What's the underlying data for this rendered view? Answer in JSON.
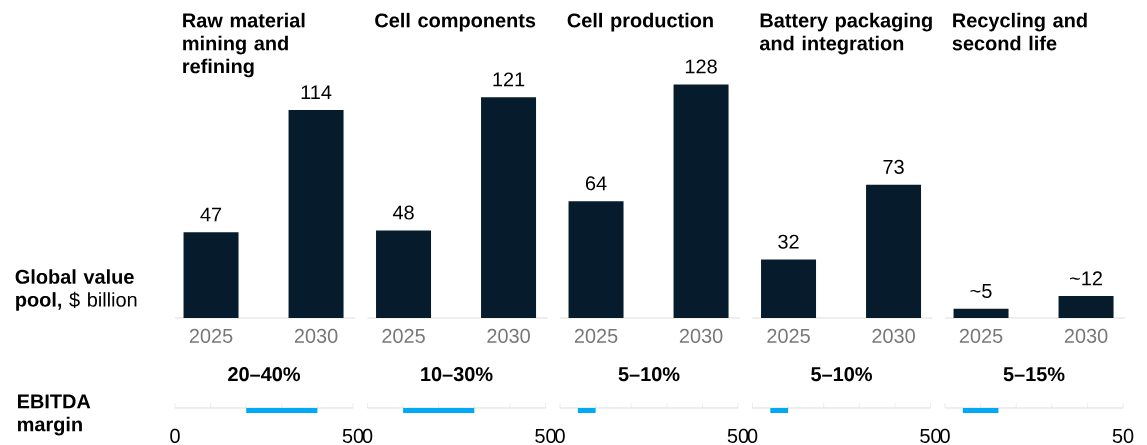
{
  "chart_data": [
    {
      "type": "bar",
      "title": "Raw material mining and refining",
      "ylabel": "**Global value pool,** $ billion",
      "categories": [
        "2025",
        "2030"
      ],
      "values": [
        47,
        114
      ],
      "color": "#061c2c",
      "data_labels": true
    },
    {
      "type": "bar",
      "title": "Cell components",
      "categories": [
        "2025",
        "2030"
      ],
      "values": [
        48,
        121
      ],
      "color": "#061c2c",
      "data_labels": true
    },
    {
      "type": "bar",
      "title": "Cell production",
      "categories": [
        "2025",
        "2030"
      ],
      "values": [
        64,
        128
      ],
      "color": "#061c2c",
      "data_labels": true
    },
    {
      "type": "bar",
      "title": "Battery packaging and integration",
      "categories": [
        "2025",
        "2030"
      ],
      "values": [
        32,
        73
      ],
      "color": "#061c2c",
      "data_labels": true
    },
    {
      "type": "bar",
      "title": "Recycling and second life",
      "categories": [
        "2025",
        "2030"
      ],
      "values": [
        5,
        12
      ],
      "value_labels": [
        "~5",
        "~12"
      ],
      "color": "#061c2c"
    },
    {
      "type": "bar",
      "orientation": "horizontal",
      "title": "20–40%",
      "ylabel": "EBITDA margin",
      "categories": [
        null
      ],
      "base": [
        20
      ],
      "values": [
        20
      ],
      "color": "#00a9f4",
      "xlim": [
        0,
        50
      ],
      "xticks": [
        0,
        {
          "value": 10,
          "label": null
        },
        {
          "value": 20,
          "label": null
        },
        {
          "value": 30,
          "label": null
        },
        {
          "value": 40,
          "label": null
        },
        50
      ]
    },
    {
      "type": "bar",
      "orientation": "horizontal",
      "title": "10–30%",
      "categories": [
        null
      ],
      "base": [
        10
      ],
      "values": [
        20
      ],
      "color": "#00a9f4",
      "xlim": [
        0,
        50
      ],
      "xticks": [
        0,
        {
          "value": 10,
          "label": null
        },
        {
          "value": 20,
          "label": null
        },
        {
          "value": 30,
          "label": null
        },
        {
          "value": 40,
          "label": null
        },
        50
      ]
    },
    {
      "type": "bar",
      "orientation": "horizontal",
      "title": "5–10%",
      "categories": [
        null
      ],
      "base": [
        5
      ],
      "values": [
        5
      ],
      "color": "#00a9f4",
      "xlim": [
        0,
        50
      ],
      "xticks": [
        0,
        {
          "value": 10,
          "label": null
        },
        {
          "value": 20,
          "label": null
        },
        {
          "value": 30,
          "label": null
        },
        {
          "value": 40,
          "label": null
        },
        50
      ]
    },
    {
      "type": "bar",
      "orientation": "horizontal",
      "title": "5–10%",
      "categories": [
        null
      ],
      "base": [
        5
      ],
      "values": [
        5
      ],
      "color": "#00a9f4",
      "xlim": [
        0,
        50
      ],
      "xticks": [
        0,
        {
          "value": 10,
          "label": null
        },
        {
          "value": 20,
          "label": null
        },
        {
          "value": 30,
          "label": null
        },
        {
          "value": 40,
          "label": null
        },
        50
      ]
    },
    {
      "type": "bar",
      "orientation": "horizontal",
      "title": "5–15%",
      "categories": [
        null
      ],
      "base": [
        5
      ],
      "values": [
        10
      ],
      "color": "#00a9f4",
      "xlim": [
        0,
        50
      ],
      "xticks": [
        0,
        {
          "value": 10,
          "label": null
        },
        {
          "value": 20,
          "label": null
        },
        {
          "value": 30,
          "label": null
        },
        {
          "value": 40,
          "label": null
        },
        50
      ]
    }
  ]
}
